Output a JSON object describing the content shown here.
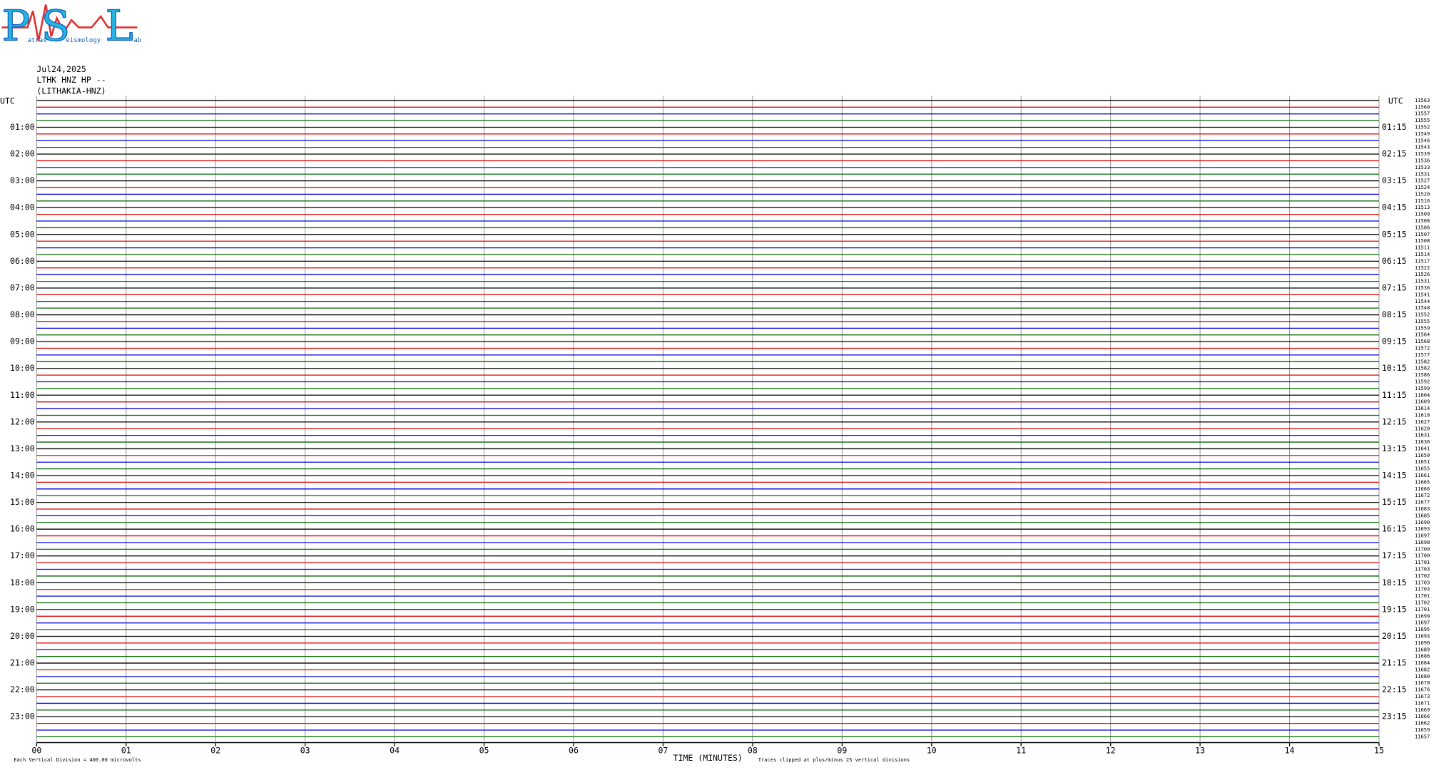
{
  "logo": {
    "parts": [
      "P",
      "atras",
      "S",
      "eismology",
      "L",
      "ab"
    ]
  },
  "header": {
    "date": "Jul24,2025",
    "station": "LTHK HNZ HP --",
    "location": "(LITHAKIA-HNZ)"
  },
  "left_labels": {
    "top": "UTC",
    "hours": [
      "01:00",
      "02:00",
      "03:00",
      "04:00",
      "05:00",
      "06:00",
      "07:00",
      "08:00",
      "09:00",
      "10:00",
      "11:00",
      "12:00",
      "13:00",
      "14:00",
      "15:00",
      "16:00",
      "17:00",
      "18:00",
      "19:00",
      "20:00",
      "21:00",
      "22:00",
      "23:00"
    ]
  },
  "right_labels": {
    "top": "UTC",
    "hours": [
      "01:15",
      "02:15",
      "03:15",
      "04:15",
      "05:15",
      "06:15",
      "07:15",
      "08:15",
      "09:15",
      "10:15",
      "11:15",
      "12:15",
      "13:15",
      "14:15",
      "15:15",
      "16:15",
      "17:15",
      "18:15",
      "19:15",
      "20:15",
      "21:15",
      "22:15",
      "23:15"
    ]
  },
  "trace_labels": [
    "11563",
    "11560",
    "11557",
    "11555",
    "11552",
    "11549",
    "11546",
    "11543",
    "11539",
    "11536",
    "11533",
    "11531",
    "11527",
    "11524",
    "11520",
    "11516",
    "11513",
    "11509",
    "11508",
    "11506",
    "11507",
    "11508",
    "11511",
    "11514",
    "11517",
    "11522",
    "11526",
    "11531",
    "11536",
    "11541",
    "11544",
    "11548",
    "11552",
    "11555",
    "11559",
    "11564",
    "11568",
    "11572",
    "11577",
    "11582",
    "11582",
    "11586",
    "11592",
    "11599",
    "11604",
    "11609",
    "11614",
    "11610",
    "11627",
    "11620",
    "11631",
    "11636",
    "11641",
    "11650",
    "11651",
    "11655",
    "11661",
    "11665",
    "11666",
    "11672",
    "11677",
    "11683",
    "11685",
    "11690",
    "11693",
    "11697",
    "11698",
    "11700",
    "11700",
    "11701",
    "11703",
    "11702",
    "11703",
    "11703",
    "11701",
    "11702",
    "11701",
    "11699",
    "11697",
    "11695",
    "11693",
    "11690",
    "11689",
    "11686",
    "11684",
    "11682",
    "11680",
    "11678",
    "11676",
    "11673",
    "11671",
    "11669",
    "11666",
    "11662",
    "11659",
    "11657"
  ],
  "x_axis": {
    "ticks": [
      "00",
      "01",
      "02",
      "03",
      "04",
      "05",
      "06",
      "07",
      "08",
      "09",
      "10",
      "11",
      "12",
      "13",
      "14",
      "15"
    ],
    "title": "TIME (MINUTES)"
  },
  "footer": {
    "scale_note": "Each Vertical Division =  400.00 microvolts",
    "clip_note": "Traces clipped at plus/minus 25 vertical divisions"
  }
}
